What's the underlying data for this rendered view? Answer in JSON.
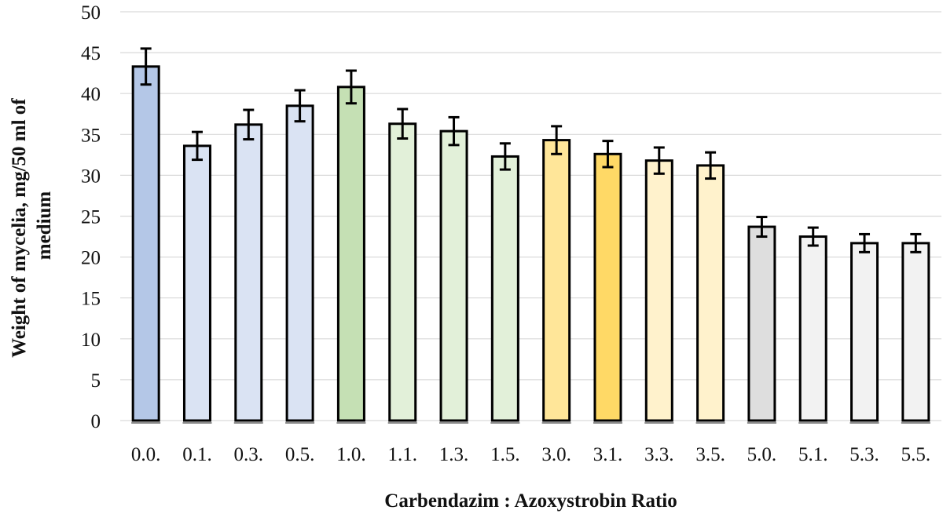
{
  "chart_data": {
    "type": "bar",
    "title": "",
    "xlabel": "Carbendazim : Azoxystrobin Ratio",
    "ylabel_lines": [
      "Weight of mycelia, mg/50 ml of",
      "medium"
    ],
    "ylim": [
      0,
      50
    ],
    "yticks": [
      0,
      5,
      10,
      15,
      20,
      25,
      30,
      35,
      40,
      45,
      50
    ],
    "grid": true,
    "legend": "none",
    "categories": [
      "0.0.",
      "0.1.",
      "0.3.",
      "0.5.",
      "1.0.",
      "1.1.",
      "1.3.",
      "1.5.",
      "3.0.",
      "3.1.",
      "3.3.",
      "3.5.",
      "5.0.",
      "5.1.",
      "5.3.",
      "5.5."
    ],
    "values": [
      43.3,
      33.6,
      36.2,
      38.5,
      40.8,
      36.3,
      35.4,
      32.3,
      34.3,
      32.6,
      31.8,
      31.2,
      23.7,
      22.5,
      21.7,
      21.7
    ],
    "errors": [
      2.2,
      1.7,
      1.8,
      1.9,
      2.0,
      1.8,
      1.7,
      1.6,
      1.7,
      1.6,
      1.6,
      1.6,
      1.2,
      1.1,
      1.1,
      1.1
    ],
    "bar_colors": [
      "#b4c7e7",
      "#dae3f3",
      "#dae3f3",
      "#dae3f3",
      "#c5e0b4",
      "#e2f0d9",
      "#e2f0d9",
      "#e2f0d9",
      "#ffe699",
      "#ffd966",
      "#fff2cc",
      "#fff2cc",
      "#dedede",
      "#f2f2f2",
      "#f2f2f2",
      "#f2f2f2"
    ],
    "bar_outline_color": "#000000",
    "grid_color": "#d9d9d9"
  }
}
